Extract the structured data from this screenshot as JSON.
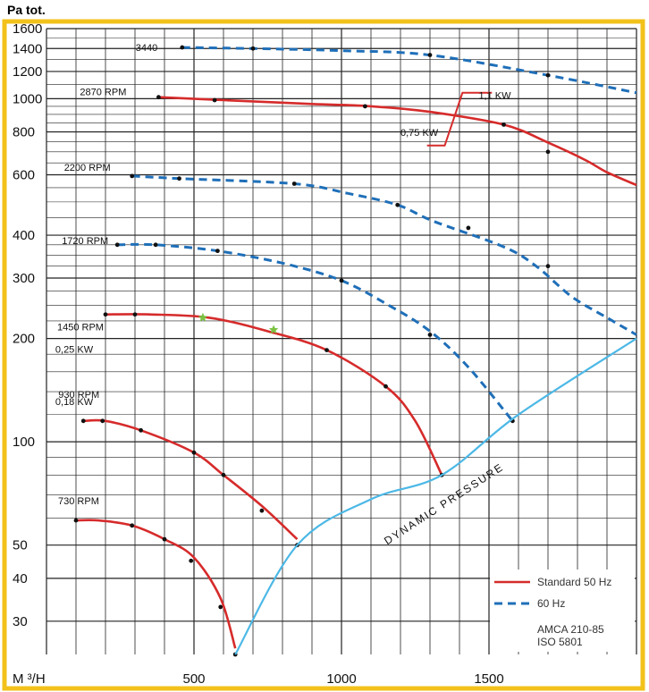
{
  "chart_data": {
    "type": "line",
    "title": "Pa tot.",
    "xlabel": "M ³/H",
    "xlim": [
      0,
      2000
    ],
    "ylim": [
      20,
      1700
    ],
    "y_scale": "log",
    "x_ticks": [
      {
        "value": 500,
        "label": "500"
      },
      {
        "value": 1000,
        "label": "1000"
      },
      {
        "value": 1500,
        "label": "1500"
      }
    ],
    "y_ticks": [
      {
        "value": 1600,
        "label": "1600"
      },
      {
        "value": 1400,
        "label": "1400"
      },
      {
        "value": 1200,
        "label": "1200"
      },
      {
        "value": 1000,
        "label": "1000"
      },
      {
        "value": 800,
        "label": "800"
      },
      {
        "value": 600,
        "label": "600"
      },
      {
        "value": 400,
        "label": "400"
      },
      {
        "value": 300,
        "label": "300"
      },
      {
        "value": 200,
        "label": "200"
      },
      {
        "value": 100,
        "label": "100"
      },
      {
        "value": 50,
        "label": "50"
      },
      {
        "value": 40,
        "label": "40"
      },
      {
        "value": 30,
        "label": "30"
      }
    ],
    "grid": true,
    "colors": {
      "standard_50hz": "#d62b2b",
      "hz60": "#1f6fb8",
      "dynamic": "#4cb8e6",
      "frame": "#f2c21b",
      "star": "#7bc242"
    },
    "series": [
      {
        "label": "3440",
        "style": "60hz",
        "points": [
          [
            460,
            1410
          ],
          [
            700,
            1400
          ],
          [
            1000,
            1380
          ],
          [
            1300,
            1340
          ],
          [
            1700,
            1170
          ],
          [
            2000,
            1040
          ]
        ],
        "markers": [
          [
            460,
            1410
          ],
          [
            700,
            1400
          ],
          [
            1300,
            1340
          ],
          [
            1700,
            1170
          ]
        ]
      },
      {
        "label": "2870 RPM",
        "style": "50hz",
        "points": [
          [
            380,
            1010
          ],
          [
            600,
            990
          ],
          [
            900,
            965
          ],
          [
            1100,
            950
          ],
          [
            1300,
            915
          ],
          [
            1550,
            840
          ],
          [
            1700,
            745
          ],
          [
            1830,
            660
          ],
          [
            1900,
            610
          ],
          [
            2000,
            560
          ]
        ],
        "markers": [
          [
            380,
            1010
          ],
          [
            570,
            990
          ],
          [
            1080,
            950
          ],
          [
            1550,
            840
          ],
          [
            1700,
            700
          ]
        ]
      },
      {
        "label": "2200 RPM",
        "style": "60hz",
        "points": [
          [
            290,
            595
          ],
          [
            450,
            585
          ],
          [
            840,
            565
          ],
          [
            1020,
            530
          ],
          [
            1190,
            490
          ],
          [
            1310,
            440
          ],
          [
            1550,
            370
          ],
          [
            1660,
            325
          ],
          [
            1780,
            265
          ],
          [
            1900,
            230
          ],
          [
            2000,
            205
          ]
        ],
        "markers": [
          [
            290,
            595
          ],
          [
            450,
            585
          ],
          [
            840,
            565
          ],
          [
            1190,
            490
          ],
          [
            1430,
            420
          ],
          [
            1700,
            325
          ]
        ]
      },
      {
        "label": "1720 RPM",
        "style": "60hz",
        "points": [
          [
            240,
            375
          ],
          [
            370,
            375
          ],
          [
            580,
            360
          ],
          [
            810,
            330
          ],
          [
            1000,
            295
          ],
          [
            1160,
            250
          ],
          [
            1300,
            210
          ],
          [
            1430,
            165
          ],
          [
            1580,
            115
          ]
        ],
        "markers": [
          [
            240,
            375
          ],
          [
            370,
            375
          ],
          [
            580,
            360
          ],
          [
            1000,
            295
          ],
          [
            1300,
            205
          ],
          [
            1580,
            115
          ]
        ]
      },
      {
        "label": "1450 RPM",
        "style": "50hz",
        "points": [
          [
            200,
            235
          ],
          [
            350,
            235
          ],
          [
            550,
            230
          ],
          [
            750,
            210
          ],
          [
            950,
            185
          ],
          [
            1150,
            145
          ],
          [
            1250,
            115
          ],
          [
            1340,
            80
          ]
        ],
        "markers": [
          [
            200,
            235
          ],
          [
            300,
            235
          ],
          [
            950,
            185
          ],
          [
            1150,
            145
          ],
          [
            1340,
            80
          ]
        ],
        "stars": [
          [
            530,
            230
          ],
          [
            770,
            212
          ]
        ]
      },
      {
        "label": "930 RPM",
        "style": "50hz",
        "points": [
          [
            125,
            115
          ],
          [
            200,
            115
          ],
          [
            320,
            108
          ],
          [
            500,
            93
          ],
          [
            600,
            80
          ],
          [
            730,
            65
          ],
          [
            850,
            52
          ]
        ],
        "markers": [
          [
            125,
            115
          ],
          [
            190,
            115
          ],
          [
            320,
            108
          ],
          [
            500,
            93
          ],
          [
            600,
            80
          ],
          [
            730,
            63
          ],
          [
            850,
            50
          ]
        ]
      },
      {
        "label": "730 RPM",
        "style": "50hz",
        "points": [
          [
            100,
            59
          ],
          [
            175,
            59
          ],
          [
            290,
            57
          ],
          [
            400,
            52
          ],
          [
            500,
            46
          ],
          [
            590,
            35
          ],
          [
            640,
            25
          ]
        ],
        "markers": [
          [
            100,
            59
          ],
          [
            290,
            57
          ],
          [
            400,
            52
          ],
          [
            490,
            45
          ],
          [
            590,
            33
          ],
          [
            640,
            24
          ]
        ]
      },
      {
        "label": "DYNAMIC PRESSURE",
        "style": "dynamic",
        "points": [
          [
            640,
            24
          ],
          [
            850,
            50
          ],
          [
            1100,
            68
          ],
          [
            1340,
            80
          ],
          [
            1600,
            120
          ],
          [
            2000,
            200
          ]
        ]
      }
    ],
    "annotations": {
      "power_50": "0,75 KW",
      "power_60": "1,1 KW",
      "rpm1450_kw": "0,25 KW",
      "rpm930_kw": "0,18 KW",
      "dynamic_label": "DYNAMIC PRESSURE"
    },
    "legend": {
      "position": "bottom-right",
      "entries": [
        {
          "label": "Standard 50 Hz",
          "style": "50hz"
        },
        {
          "label": "60 Hz",
          "style": "60hz"
        }
      ],
      "standard_lines": [
        "AMCA 210-85",
        "ISO 5801"
      ]
    }
  }
}
